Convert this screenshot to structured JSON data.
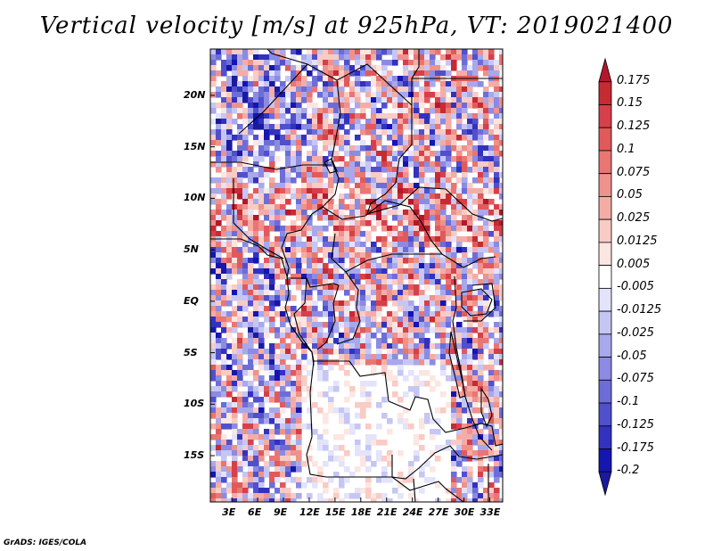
{
  "title": "Vertical velocity [m/s] at 925hPa, VT: 2019021400",
  "credit": "GrADS: IGES/COLA",
  "lat_labels": [
    "20N",
    "15N",
    "10N",
    "5N",
    "EQ",
    "5S",
    "10S",
    "15S"
  ],
  "lat_values": [
    20,
    15,
    10,
    5,
    0,
    -5,
    -10,
    -15
  ],
  "lon_labels": [
    "3E",
    "6E",
    "9E",
    "12E",
    "15E",
    "18E",
    "21E",
    "24E",
    "27E",
    "30E",
    "33E"
  ],
  "lon_values": [
    3,
    6,
    9,
    12,
    15,
    18,
    21,
    24,
    27,
    30,
    33
  ],
  "extent": {
    "lon_min": 0.5,
    "lon_max": 34.5,
    "lat_min": -19.5,
    "lat_max": 24.5
  },
  "colorbar": {
    "labels": [
      "0.175",
      "0.15",
      "0.125",
      "0.1",
      "0.075",
      "0.05",
      "0.025",
      "0.0125",
      "0.005",
      "-0.005",
      "-0.0125",
      "-0.025",
      "-0.05",
      "-0.075",
      "-0.1",
      "-0.125",
      "-0.175",
      "-0.2"
    ],
    "colors": [
      "#b2182b",
      "#c62b33",
      "#d6404a",
      "#e05a5c",
      "#e87673",
      "#ef918c",
      "#f4ada6",
      "#f9cbc5",
      "#fce6e2",
      "#ffffff",
      "#e3e3fb",
      "#c6c6f4",
      "#a8a8ec",
      "#8b8be3",
      "#6d6dd8",
      "#5050cc",
      "#3232bf",
      "#1515b0",
      "#1a1aa0"
    ]
  },
  "chart_data": {
    "type": "heatmap",
    "title": "Vertical velocity [m/s] at 925hPa, VT: 2019021400",
    "variable": "vertical velocity",
    "units": "m/s",
    "level": "925hPa",
    "valid_time": "2019021400",
    "x_axis": "longitude",
    "y_axis": "latitude",
    "xlim": [
      0.5,
      34.5
    ],
    "ylim": [
      -19.5,
      24.5
    ],
    "levels": [
      -0.2,
      -0.175,
      -0.125,
      -0.1,
      -0.075,
      -0.05,
      -0.025,
      -0.0125,
      -0.005,
      0.005,
      0.0125,
      0.025,
      0.05,
      0.075,
      0.1,
      0.125,
      0.15,
      0.175
    ]
  }
}
